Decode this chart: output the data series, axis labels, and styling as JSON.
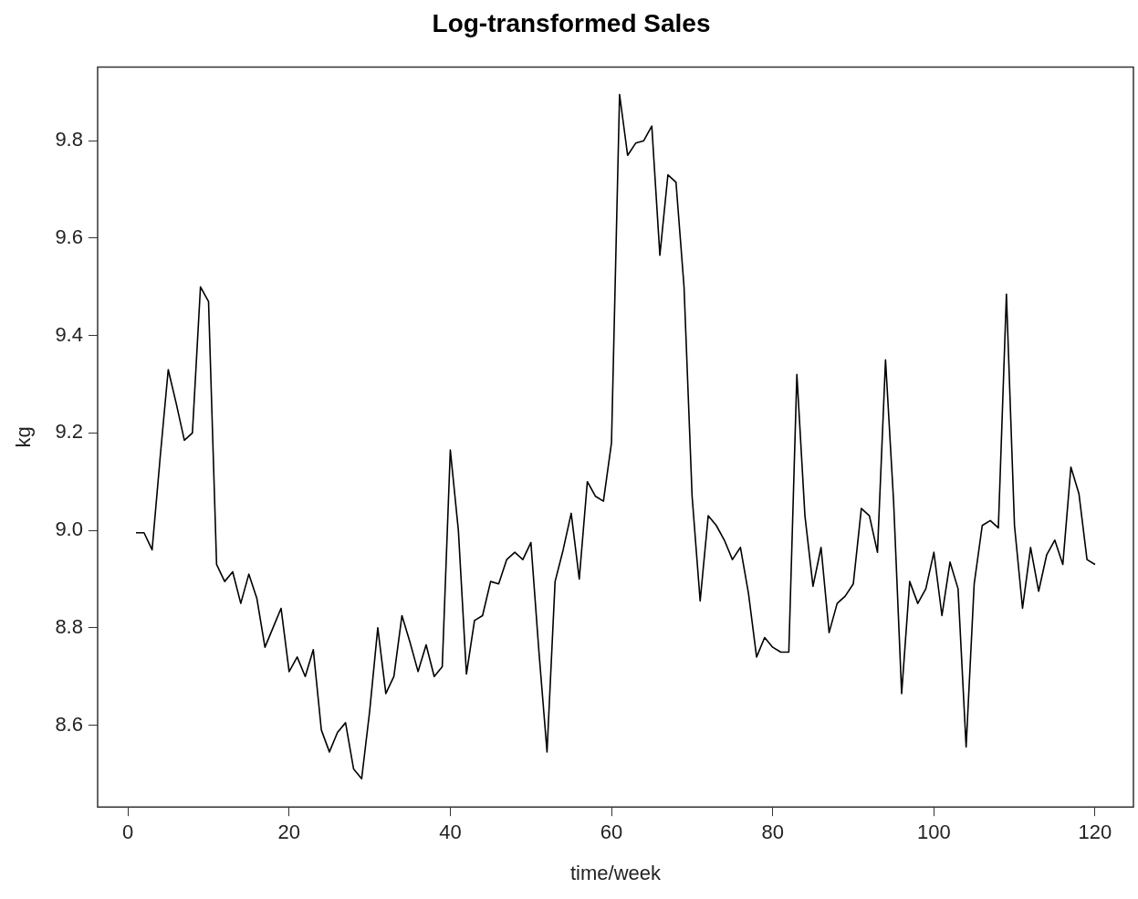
{
  "chart_data": {
    "type": "line",
    "title": "Log-transformed Sales",
    "xlabel": "time/week",
    "ylabel": "kg",
    "x": [
      1,
      2,
      3,
      4,
      5,
      6,
      7,
      8,
      9,
      10,
      11,
      12,
      13,
      14,
      15,
      16,
      17,
      18,
      19,
      20,
      21,
      22,
      23,
      24,
      25,
      26,
      27,
      28,
      29,
      30,
      31,
      32,
      33,
      34,
      35,
      36,
      37,
      38,
      39,
      40,
      41,
      42,
      43,
      44,
      45,
      46,
      47,
      48,
      49,
      50,
      51,
      52,
      53,
      54,
      55,
      56,
      57,
      58,
      59,
      60,
      61,
      62,
      63,
      64,
      65,
      66,
      67,
      68,
      69,
      70,
      71,
      72,
      73,
      74,
      75,
      76,
      77,
      78,
      79,
      80,
      81,
      82,
      83,
      84,
      85,
      86,
      87,
      88,
      89,
      90,
      91,
      92,
      93,
      94,
      95,
      96,
      97,
      98,
      99,
      100,
      101,
      102,
      103,
      104,
      105,
      106,
      107,
      108,
      109,
      110,
      111,
      112,
      113,
      114,
      115,
      116,
      117,
      118,
      119,
      120
    ],
    "series": [
      {
        "color": "#000000",
        "values": [
          8.995,
          8.995,
          8.96,
          9.15,
          9.33,
          9.26,
          9.185,
          9.2,
          9.5,
          9.47,
          8.93,
          8.895,
          8.915,
          8.85,
          8.91,
          8.86,
          8.76,
          8.8,
          8.84,
          8.71,
          8.74,
          8.7,
          8.755,
          8.59,
          8.545,
          8.585,
          8.605,
          8.51,
          8.49,
          8.63,
          8.8,
          8.665,
          8.7,
          8.825,
          8.77,
          8.71,
          8.765,
          8.7,
          8.72,
          9.165,
          9.0,
          8.705,
          8.815,
          8.825,
          8.895,
          8.89,
          8.94,
          8.955,
          8.94,
          8.975,
          8.75,
          8.545,
          8.895,
          8.96,
          9.035,
          8.9,
          9.1,
          9.07,
          9.06,
          9.18,
          9.895,
          9.77,
          9.795,
          9.8,
          9.83,
          9.565,
          9.73,
          9.715,
          9.5,
          9.07,
          8.855,
          9.03,
          9.01,
          8.98,
          8.94,
          8.965,
          8.87,
          8.74,
          8.78,
          8.76,
          8.75,
          8.75,
          9.32,
          9.03,
          8.885,
          8.965,
          8.79,
          8.85,
          8.865,
          8.89,
          9.045,
          9.03,
          8.955,
          9.35,
          9.06,
          8.665,
          8.895,
          8.85,
          8.88,
          8.955,
          8.825,
          8.935,
          8.88,
          8.555,
          8.89,
          9.01,
          9.02,
          9.005,
          9.485,
          9.01,
          8.84,
          8.965,
          8.875,
          8.95,
          8.98,
          8.93,
          9.13,
          9.075,
          8.94,
          8.93
        ]
      }
    ],
    "xlim": [
      -3.76,
      124.76
    ],
    "ylim": [
      8.432,
      9.951
    ],
    "xticks": [
      0,
      20,
      40,
      60,
      80,
      100,
      120
    ],
    "yticks": [
      8.6,
      8.8,
      {
        "value": 9,
        "label": "9.0"
      },
      9.2,
      9.4,
      9.6,
      9.8
    ],
    "grid": false,
    "legend": false,
    "line_style": "solid"
  }
}
